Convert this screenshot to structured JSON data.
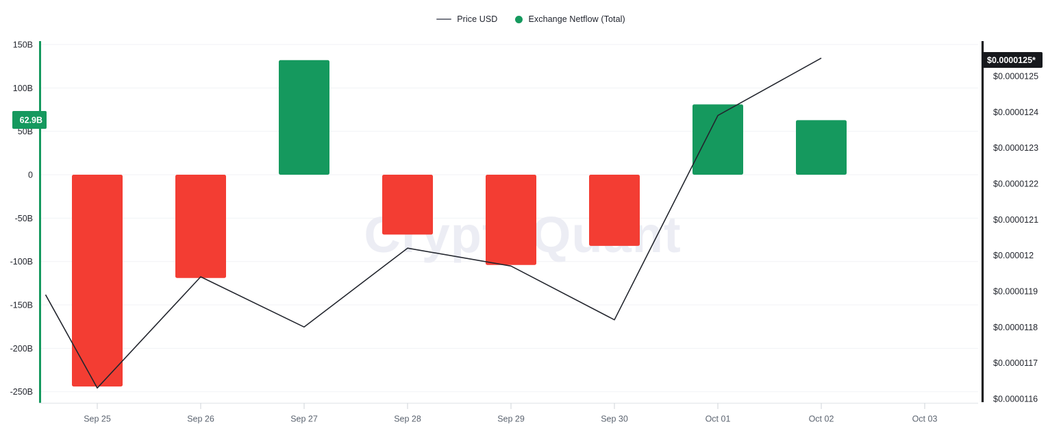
{
  "legend": {
    "items": [
      {
        "label": "Price USD",
        "marker": "line",
        "color": "#787b86"
      },
      {
        "label": "Exchange Netflow (Total)",
        "marker": "dot",
        "color": "#15995e"
      }
    ]
  },
  "watermark": "CryptoQuant",
  "colors": {
    "netflow_positive": "#15995e",
    "netflow_negative": "#f33d33",
    "price_line": "#23262e",
    "left_axis_line": "#15995e",
    "right_axis_line": "#17191d",
    "grid": "#f1f2f6",
    "x_axis_line": "#e4e7eb",
    "tick": "#cfd3d9",
    "x_label": "#5c6470",
    "y_label": "#23262e",
    "watermark": "#ecedf4"
  },
  "badges": {
    "netflow": {
      "label": "62.9B",
      "bg": "#15995e"
    },
    "price": {
      "label": "$0.0000125*",
      "bg": "#17191d"
    }
  },
  "chart_data": {
    "type": "mixed",
    "title": "",
    "categories": [
      "Sep 25",
      "Sep 26",
      "Sep 27",
      "Sep 28",
      "Sep 29",
      "Sep 30",
      "Oct 01",
      "Oct 02",
      "Oct 03"
    ],
    "series": [
      {
        "name": "Exchange Netflow (Total)",
        "type": "bar",
        "axis": "left",
        "unit": "B",
        "values": [
          -244,
          -119,
          132,
          -69,
          -104,
          -82,
          81,
          62.9,
          null
        ]
      },
      {
        "name": "Price USD",
        "type": "line",
        "axis": "right",
        "points": [
          {
            "x_index": -0.5,
            "price": 1.189e-05
          },
          {
            "x_index": 0,
            "price": 1.163e-05
          },
          {
            "x_index": 1,
            "price": 1.194e-05
          },
          {
            "x_index": 2,
            "price": 1.18e-05
          },
          {
            "x_index": 3,
            "price": 1.202e-05
          },
          {
            "x_index": 4,
            "price": 1.197e-05
          },
          {
            "x_index": 5,
            "price": 1.182e-05
          },
          {
            "x_index": 6,
            "price": 1.239e-05
          },
          {
            "x_index": 7,
            "price": 1.255e-05
          }
        ]
      }
    ],
    "left_axis": {
      "title": "Exchange Netflow (Total)",
      "tick_labels": [
        "150B",
        "100B",
        "50B",
        "0",
        "-50B",
        "-100B",
        "-150B",
        "-200B",
        "-250B"
      ],
      "tick_values": [
        150,
        100,
        50,
        0,
        -50,
        -100,
        -150,
        -200,
        -250
      ],
      "range": [
        -268,
        154
      ]
    },
    "right_axis": {
      "title": "Price USD",
      "tick_labels": [
        "$0.0000125",
        "$0.0000124",
        "$0.0000123",
        "$0.0000122",
        "$0.0000121",
        "$0.000012",
        "$0.0000119",
        "$0.0000118",
        "$0.0000117",
        "$0.0000116"
      ],
      "tick_values": [
        1.25e-05,
        1.24e-05,
        1.23e-05,
        1.22e-05,
        1.21e-05,
        1.2e-05,
        1.19e-05,
        1.18e-05,
        1.17e-05,
        1.16e-05
      ],
      "range": [
        1.16e-05,
        1.26e-05
      ]
    },
    "grid": true,
    "legend_position": "top-center"
  }
}
